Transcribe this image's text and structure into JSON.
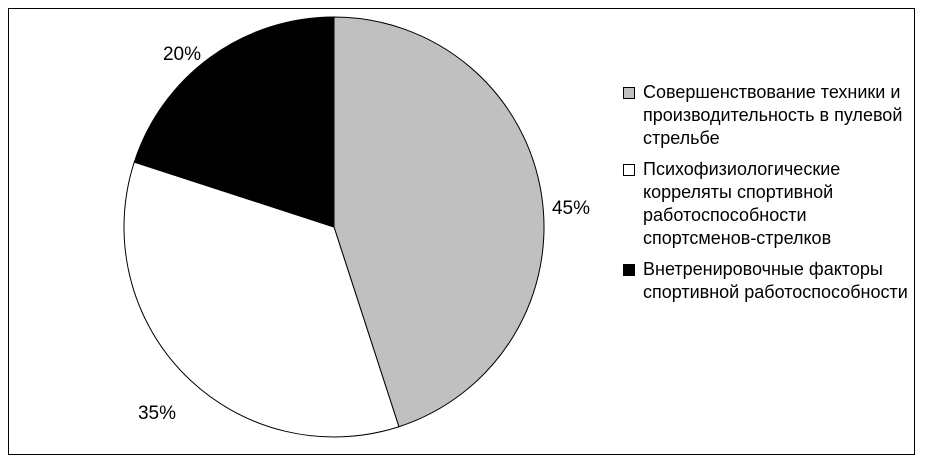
{
  "chart_data": {
    "type": "pie",
    "categories": [
      "Совершенствование техники и производительность в пулевой стрельбе",
      "Психофизиологические корреляты спортивной работоспособности спортсменов-стрелков",
      "Внетренировочные факторы спортивной работоспособности"
    ],
    "values": [
      45,
      35,
      20
    ],
    "value_labels": [
      "45%",
      "35%",
      "20%"
    ],
    "colors": [
      "#c0c0c0",
      "#ffffff",
      "#000000"
    ],
    "legend_placement": "right",
    "start_angle": "12 o'clock, clockwise"
  }
}
